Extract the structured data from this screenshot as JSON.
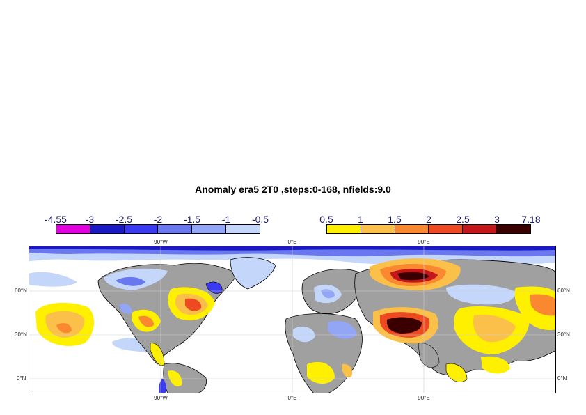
{
  "title": "Anomaly era5 2T0 ,steps:0-168, nfields:9.0",
  "colorbars": {
    "negative": {
      "labels": [
        "-4.55",
        "-3",
        "-2.5",
        "-2",
        "-1.5",
        "-1",
        "-0.5"
      ],
      "colors": [
        "#e000e0",
        "#1a1ac4",
        "#3a3af0",
        "#6a78f0",
        "#93a5f5",
        "#c4d6fa"
      ]
    },
    "positive": {
      "labels": [
        "0.5",
        "1",
        "1.5",
        "2",
        "2.5",
        "3",
        "7.18"
      ],
      "colors": [
        "#fff000",
        "#fbc04a",
        "#f98830",
        "#ee4a22",
        "#c4171c",
        "#3a0000"
      ]
    }
  },
  "map": {
    "lon_labels": [
      "90°W",
      "0°E",
      "90°E"
    ],
    "lat_labels": [
      "60°N",
      "30°N",
      "0°N"
    ],
    "colors": {
      "ocean": "#ffffff",
      "land_neutral": "#a0a0a0",
      "coast": "#000000",
      "grid": "#cfcfcf"
    }
  }
}
